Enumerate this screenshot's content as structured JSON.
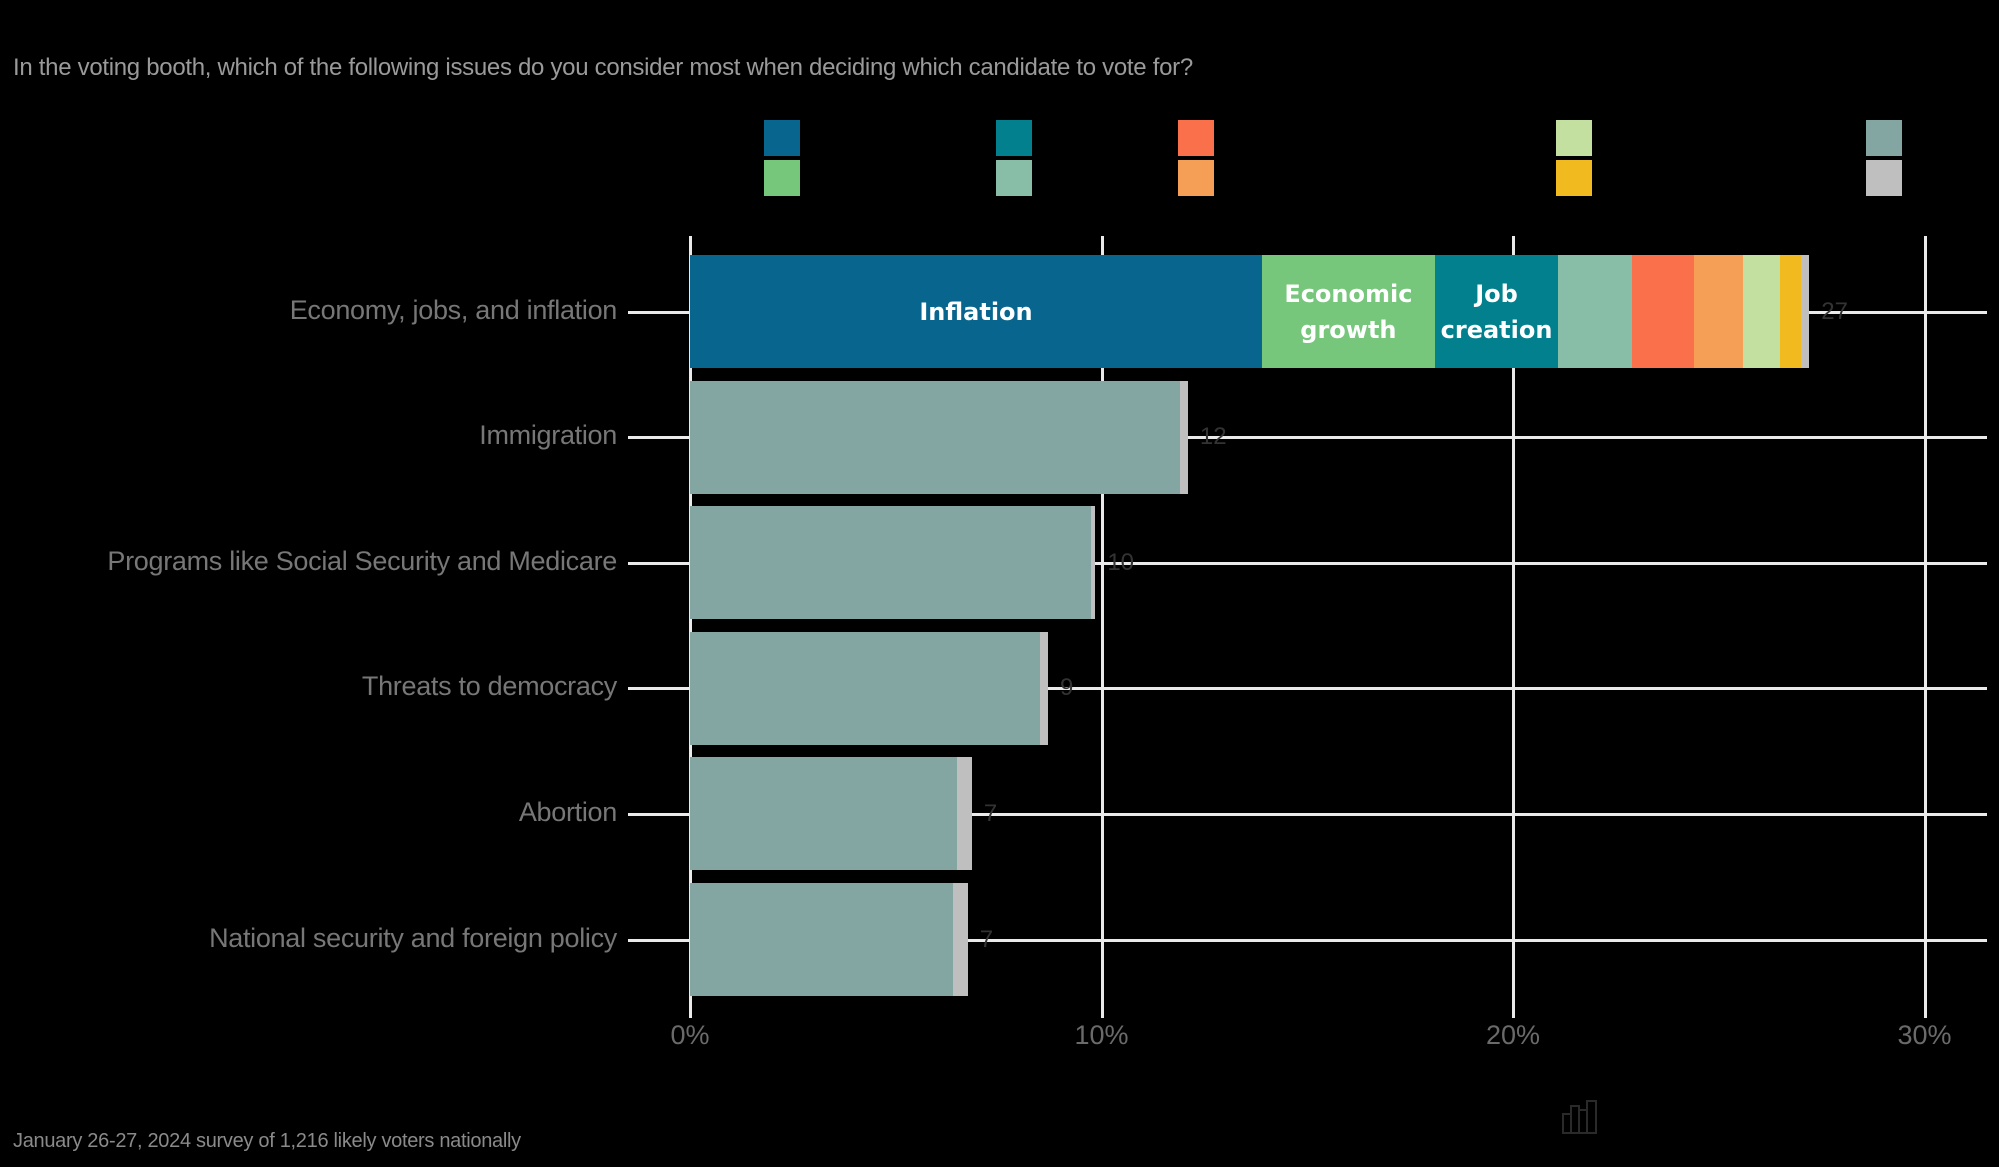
{
  "chart_data": {
    "type": "bar",
    "orientation": "horizontal",
    "stacked": true,
    "title": "In the voting booth, which of the following issues do you consider most when deciding which candidate to vote for?",
    "xlabel": "",
    "ylabel": "",
    "xlim": [
      0,
      30
    ],
    "x_ticks": [
      "0%",
      "10%",
      "20%",
      "30%"
    ],
    "grid": true,
    "categories": [
      "Economy, jobs, and inflation",
      "Immigration",
      "Programs like Social Security and Medicare",
      "Threats to democracy",
      "Abortion",
      "National security and foreign policy"
    ],
    "totals": [
      27,
      12,
      10,
      9,
      7,
      7
    ],
    "rows": [
      {
        "label": "Economy, jobs, and inflation",
        "total_label": "27",
        "segments": [
          {
            "label": "Inflation",
            "value": 13.9,
            "color": "#08668E"
          },
          {
            "label": "Economic growth",
            "value": 4.2,
            "color": "#76C67B"
          },
          {
            "label": "Job creation",
            "value": 3.0,
            "color": "#03808D"
          },
          {
            "label": "",
            "value": 1.8,
            "color": "#88BEA7"
          },
          {
            "label": "",
            "value": 1.5,
            "color": "#F9704A"
          },
          {
            "label": "",
            "value": 1.2,
            "color": "#F59F56"
          },
          {
            "label": "",
            "value": 0.9,
            "color": "#C3E0A1"
          },
          {
            "label": "",
            "value": 0.5,
            "color": "#F1BA1E"
          },
          {
            "label": "",
            "value": 0.2,
            "color": "#BFBFBF"
          }
        ]
      },
      {
        "label": "Immigration",
        "total_label": "12",
        "segments": [
          {
            "label": "",
            "value": 11.9,
            "color": "#84A6A2"
          },
          {
            "label": "",
            "value": 0.2,
            "color": "#BFBFBF"
          }
        ]
      },
      {
        "label": "Programs like Social Security and Medicare",
        "total_label": "10",
        "segments": [
          {
            "label": "",
            "value": 9.75,
            "color": "#84A6A2"
          },
          {
            "label": "",
            "value": 0.1,
            "color": "#BFBFBF"
          }
        ]
      },
      {
        "label": "Threats to democracy",
        "total_label": "9",
        "segments": [
          {
            "label": "",
            "value": 8.5,
            "color": "#84A6A2"
          },
          {
            "label": "",
            "value": 0.2,
            "color": "#BFBFBF"
          }
        ]
      },
      {
        "label": "Abortion",
        "total_label": "7",
        "segments": [
          {
            "label": "",
            "value": 6.5,
            "color": "#84A6A2"
          },
          {
            "label": "",
            "value": 0.35,
            "color": "#BFBFBF"
          }
        ]
      },
      {
        "label": "National security and foreign policy",
        "total_label": "7",
        "segments": [
          {
            "label": "",
            "value": 6.4,
            "color": "#84A6A2"
          },
          {
            "label": "",
            "value": 0.35,
            "color": "#BFBFBF"
          }
        ]
      }
    ],
    "legend": {
      "position": "top",
      "labels_visible": false,
      "swatches": [
        "#08668E",
        "#76C67B",
        "#03808D",
        "#88BEA7",
        "#F9704A",
        "#F59F56",
        "#C3E0A1",
        "#F1BA1E",
        "#84A6A2",
        "#BFBFBF"
      ]
    }
  },
  "header": {
    "title": "In the voting booth, which of the following issues do you consider most when deciding which candidate to vote for?"
  },
  "footer": {
    "note": "January 26-27, 2024 survey of 1,216 likely voters nationally"
  },
  "icons": {
    "chart": "bar-chart-icon"
  }
}
